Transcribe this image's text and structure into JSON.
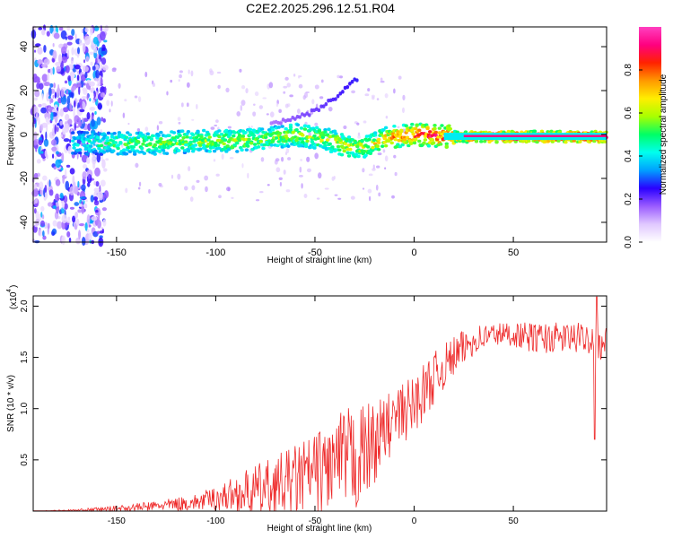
{
  "figure": {
    "title": "C2E2.2025.296.12.51.R04"
  },
  "chart_data": [
    {
      "type": "heatmap",
      "title": "C2E2.2025.296.12.51.R04",
      "xlabel": "Height of straight line (km)",
      "ylabel": "Frequency (Hz)",
      "xlim": [
        -192,
        97
      ],
      "ylim": [
        -49,
        49
      ],
      "xticks": [
        -150,
        -100,
        -50,
        0,
        50
      ],
      "yticks": [
        -40,
        -20,
        0,
        20,
        40
      ],
      "colorbar": {
        "label": "Normalized spectral amplitude",
        "range": [
          0,
          1
        ],
        "ticks": [
          0.0,
          0.2,
          0.4,
          0.6,
          0.8
        ],
        "tick_labels": [
          "0.0",
          "0.2",
          "0.4",
          "0.6",
          "0.8"
        ],
        "colors": [
          "#ffffff",
          "#e0c8ff",
          "#9b5cff",
          "#2a00ff",
          "#00a0ff",
          "#00ffee",
          "#00ff66",
          "#a8ff00",
          "#ffee00",
          "#ff9900",
          "#ff2200",
          "#ff0080",
          "#ff40c0"
        ]
      },
      "features": {
        "main_band": {
          "x": [
            -172,
            -150,
            -130,
            -110,
            -90,
            -75,
            -60,
            -45,
            -35,
            -28,
            -20,
            -12,
            0,
            20,
            40,
            60,
            97
          ],
          "freq": [
            -4,
            -4,
            -4,
            -3,
            -3,
            -2,
            0,
            -2,
            -5,
            -6,
            -4,
            -1,
            0,
            -1,
            -1,
            -1,
            -1
          ],
          "amplitude": [
            0.3,
            0.4,
            0.45,
            0.45,
            0.5,
            0.45,
            0.5,
            0.5,
            0.55,
            0.5,
            0.55,
            0.65,
            0.75,
            0.8,
            0.9,
            0.9,
            0.9
          ]
        },
        "secondary_branch": {
          "x": [
            -72,
            -62,
            -52,
            -44,
            -38,
            -33,
            -28
          ],
          "freq": [
            5,
            7,
            10,
            14,
            18,
            22,
            26
          ],
          "amplitude": [
            0.15,
            0.18,
            0.2,
            0.22,
            0.24,
            0.25,
            0.26
          ]
        },
        "noise_region_x": [
          -192,
          -155
        ]
      }
    },
    {
      "type": "line",
      "title": "",
      "xlabel": "Height of straight line (km)",
      "ylabel": "SNR (10 * v/v)",
      "y_scale_label": "(x10",
      "y_scale_exponent": "4",
      "color": "#ee2b2b",
      "xlim": [
        -192,
        97
      ],
      "ylim": [
        0,
        2.1
      ],
      "xticks": [
        -150,
        -100,
        -50,
        0,
        50
      ],
      "yticks": [
        0.5,
        1.0,
        1.5,
        2.0
      ],
      "ytick_labels": [
        "0.5",
        "1.0",
        "1.5",
        "2.0"
      ],
      "envelope": {
        "x": [
          -192,
          -170,
          -150,
          -130,
          -110,
          -100,
          -90,
          -80,
          -70,
          -60,
          -50,
          -40,
          -35,
          -30,
          -20,
          -10,
          0,
          10,
          20,
          30,
          40,
          50,
          60,
          70,
          80,
          90,
          97
        ],
        "y_mean": [
          0.0,
          0.01,
          0.03,
          0.06,
          0.1,
          0.15,
          0.2,
          0.25,
          0.3,
          0.37,
          0.45,
          0.55,
          0.6,
          0.6,
          0.75,
          0.95,
          1.1,
          1.35,
          1.55,
          1.7,
          1.75,
          1.75,
          1.72,
          1.72,
          1.72,
          1.72,
          1.65
        ],
        "y_spread": [
          0.005,
          0.01,
          0.03,
          0.05,
          0.08,
          0.12,
          0.18,
          0.25,
          0.3,
          0.35,
          0.4,
          0.45,
          0.5,
          0.55,
          0.4,
          0.3,
          0.3,
          0.25,
          0.2,
          0.15,
          0.12,
          0.12,
          0.15,
          0.15,
          0.15,
          0.15,
          0.2
        ]
      },
      "peak": {
        "x": 92,
        "y": 2.09
      },
      "dip": {
        "x": 91,
        "y": 0.7
      }
    }
  ]
}
